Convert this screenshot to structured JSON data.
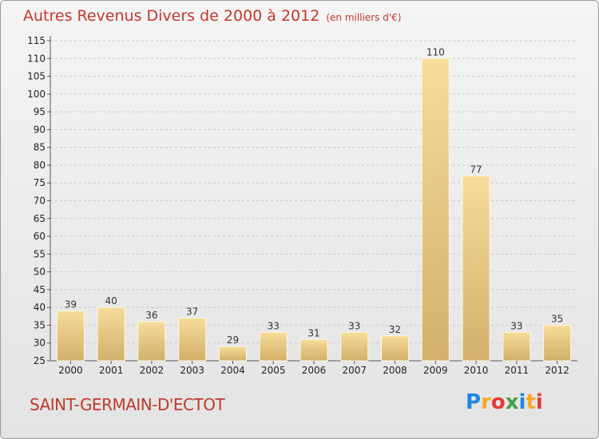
{
  "title": "Autres Revenus Divers de 2000 à 2012",
  "title_unit": "(en milliers d'€)",
  "commune": "SAINT-GERMAIN-D'ECTOT",
  "brand": {
    "letters": [
      "P",
      "r",
      "o",
      "x",
      "i",
      "t",
      "i"
    ],
    "colors": [
      "#1e88e5",
      "#f9a825",
      "#e53935",
      "#43a047",
      "#1e88e5",
      "#f9a825",
      "#e53935"
    ]
  },
  "colors": {
    "title": "#c0392b",
    "bar_light": "#f6dc9a",
    "bar_dark": "#d2b06a",
    "grid": "#c8c8c8"
  },
  "chart_data": {
    "type": "bar",
    "categories": [
      "2000",
      "2001",
      "2002",
      "2003",
      "2004",
      "2005",
      "2006",
      "2007",
      "2008",
      "2009",
      "2010",
      "2011",
      "2012"
    ],
    "values": [
      39,
      40,
      36,
      37,
      29,
      33,
      31,
      33,
      32,
      110,
      77,
      33,
      35
    ],
    "ylim": [
      25,
      115
    ],
    "yticks": [
      25,
      30,
      35,
      40,
      45,
      50,
      55,
      60,
      65,
      70,
      75,
      80,
      85,
      90,
      95,
      100,
      105,
      110,
      115
    ],
    "grid": true,
    "xlabel": "",
    "ylabel": ""
  }
}
